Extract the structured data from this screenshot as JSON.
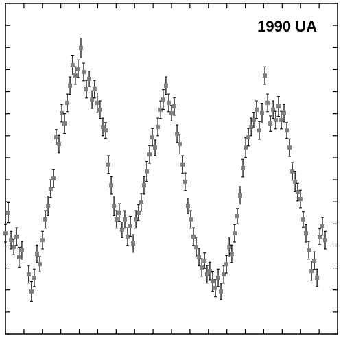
{
  "chart_data": {
    "type": "scatter",
    "title": "1990 UA",
    "x": [
      0.0,
      0.15,
      0.3,
      0.45,
      0.6,
      0.74,
      0.89,
      1.26,
      1.41,
      1.56,
      1.71,
      1.86,
      2.01,
      2.16,
      2.31,
      2.45,
      2.6,
      2.75,
      2.9,
      3.05,
      3.2,
      3.35,
      3.5,
      3.64,
      3.79,
      3.94,
      4.09,
      4.24,
      4.39,
      4.54,
      4.69,
      4.83,
      4.98,
      5.13,
      5.28,
      5.43,
      5.58,
      5.73,
      5.88,
      6.02,
      6.17,
      6.32,
      6.47,
      6.62,
      6.77,
      6.92,
      7.07,
      7.21,
      7.36,
      7.51,
      7.66,
      7.81,
      7.96,
      8.11,
      8.26,
      8.41,
      8.55,
      8.7,
      8.85,
      9.0,
      9.15,
      9.3,
      9.45,
      9.6,
      9.74,
      9.89,
      10.04,
      10.19,
      10.34,
      10.49,
      10.64,
      10.79,
      10.93,
      11.08,
      11.23,
      11.38,
      11.53,
      11.68,
      11.83,
      11.98,
      12.13,
      12.27,
      12.42,
      12.57,
      12.72,
      12.87,
      13.02,
      13.17,
      13.32,
      13.46,
      13.61,
      13.76,
      13.91,
      14.06,
      14.21,
      14.36,
      14.51,
      14.65,
      14.8,
      14.95,
      15.1,
      15.25,
      15.4,
      15.55,
      15.7,
      15.84,
      15.99,
      16.14,
      16.29,
      16.44,
      16.59,
      16.74,
      16.89,
      17.04,
      17.18,
      17.33
    ],
    "values": [
      4.57,
      5.51,
      4.26,
      3.95,
      4.42,
      3.49,
      3.8,
      2.71,
      1.93,
      2.55,
      3.64,
      3.17,
      4.26,
      5.2,
      5.82,
      6.6,
      7.06,
      8.93,
      8.62,
      10.02,
      9.55,
      10.49,
      11.27,
      12.2,
      11.73,
      12.04,
      12.98,
      11.89,
      11.11,
      11.58,
      10.64,
      11.11,
      10.49,
      10.18,
      9.4,
      9.24,
      7.69,
      6.75,
      5.82,
      5.2,
      5.51,
      4.73,
      5.2,
      4.42,
      4.89,
      4.11,
      5.2,
      5.51,
      5.98,
      6.75,
      7.38,
      8.15,
      8.93,
      8.46,
      9.4,
      10.18,
      10.64,
      11.27,
      10.49,
      10.02,
      10.33,
      9.09,
      8.62,
      7.69,
      6.91,
      5.82,
      5.2,
      4.42,
      3.95,
      3.49,
      3.02,
      3.33,
      2.71,
      2.86,
      2.4,
      2.09,
      2.55,
      1.93,
      2.71,
      3.17,
      3.95,
      3.64,
      4.57,
      5.35,
      6.29,
      7.53,
      8.46,
      8.93,
      9.4,
      9.71,
      10.18,
      9.24,
      10.02,
      11.73,
      10.49,
      9.55,
      10.18,
      9.71,
      10.33,
      9.71,
      10.02,
      9.24,
      8.46,
      7.38,
      6.91,
      6.44,
      6.13,
      5.2,
      4.57,
      3.8,
      2.86,
      3.33,
      2.55,
      4.42,
      4.89,
      4.26
    ],
    "errors": [
      0.4,
      0.45,
      0.4,
      0.35,
      0.4,
      0.45,
      0.4,
      0.4,
      0.45,
      0.4,
      0.4,
      0.35,
      0.4,
      0.4,
      0.45,
      0.4,
      0.4,
      0.35,
      0.4,
      0.4,
      0.45,
      0.4,
      0.4,
      0.45,
      0.4,
      0.4,
      0.45,
      0.4,
      0.4,
      0.35,
      0.4,
      0.4,
      0.45,
      0.4,
      0.4,
      0.35,
      0.4,
      0.4,
      0.45,
      0.4,
      0.4,
      0.35,
      0.4,
      0.4,
      0.45,
      0.4,
      0.4,
      0.35,
      0.4,
      0.4,
      0.45,
      0.4,
      0.4,
      0.35,
      0.4,
      0.4,
      0.45,
      0.4,
      0.4,
      0.35,
      0.4,
      0.4,
      0.45,
      0.4,
      0.4,
      0.35,
      0.4,
      0.4,
      0.45,
      0.4,
      0.4,
      0.35,
      0.4,
      0.4,
      0.45,
      0.4,
      0.4,
      0.35,
      0.4,
      0.4,
      0.45,
      0.4,
      0.4,
      0.35,
      0.4,
      0.4,
      0.45,
      0.4,
      0.4,
      0.35,
      0.4,
      0.4,
      0.45,
      0.4,
      0.4,
      0.35,
      0.4,
      0.4,
      0.45,
      0.4,
      0.4,
      0.35,
      0.4,
      0.4,
      0.45,
      0.4,
      0.4,
      0.35,
      0.4,
      0.4,
      0.45,
      0.4,
      0.4,
      0.35,
      0.4,
      0.4
    ],
    "color": "#808080",
    "error_color": "#000000",
    "xlim": [
      0,
      18
    ],
    "xticks": [
      0,
      1,
      2,
      3,
      4,
      5,
      6,
      7,
      8,
      9,
      10,
      11,
      12,
      13,
      14,
      15,
      16,
      17,
      18
    ],
    "ylim": [
      0,
      15
    ],
    "yticks": [
      0,
      1,
      2,
      3,
      4,
      5,
      6,
      7,
      8,
      9,
      10,
      11,
      12,
      13,
      14,
      15
    ]
  }
}
